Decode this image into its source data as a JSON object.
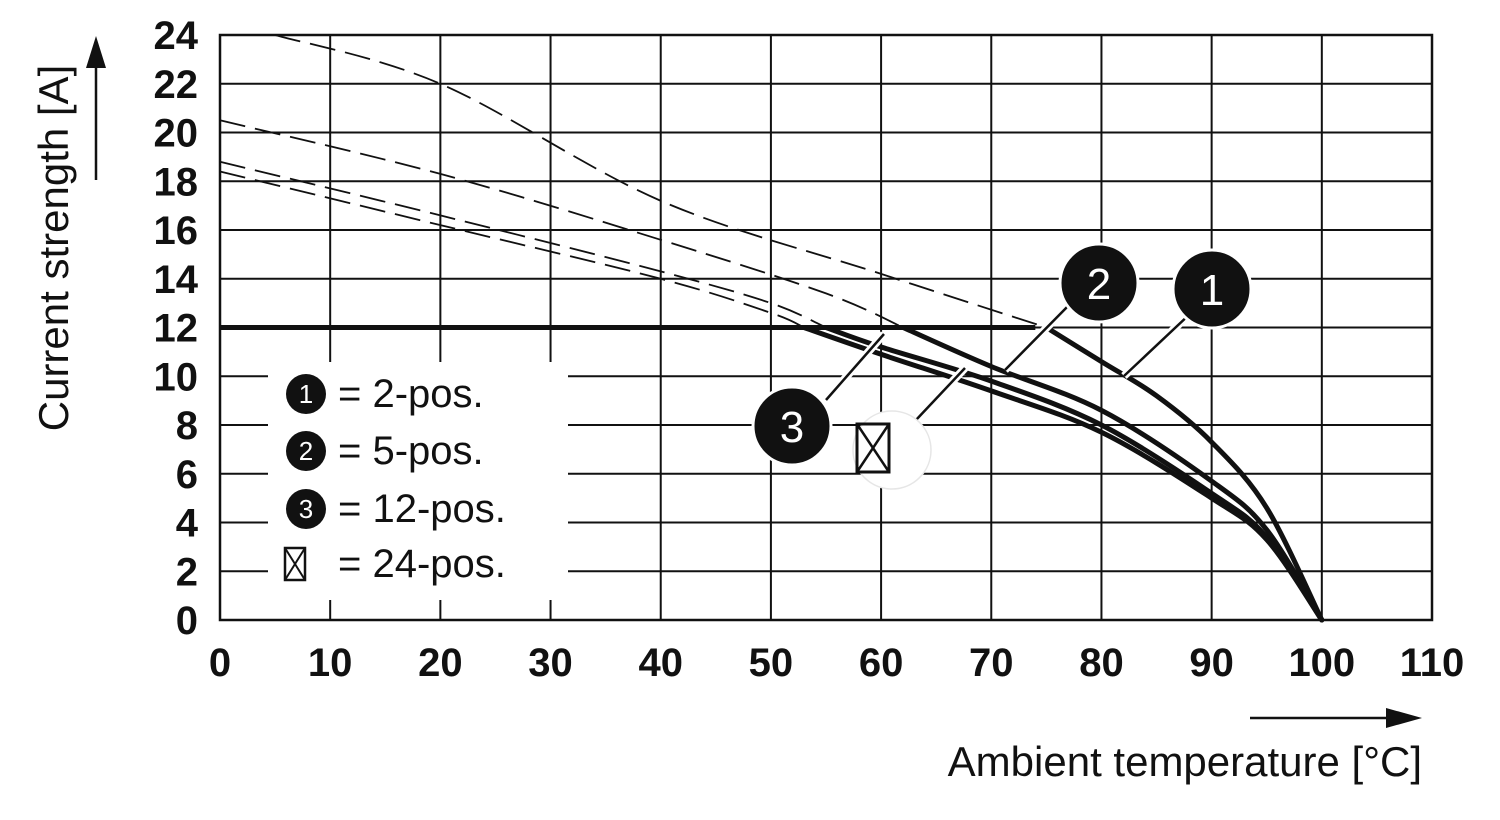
{
  "chart_data": {
    "type": "line",
    "xlabel": "Ambient temperature [°C]",
    "ylabel": "Current strength [A]",
    "xlim": [
      0,
      110
    ],
    "ylim": [
      0,
      24
    ],
    "x_ticks": [
      "0",
      "10",
      "20",
      "30",
      "40",
      "50",
      "60",
      "70",
      "80",
      "90",
      "100",
      "110"
    ],
    "y_ticks": [
      "0",
      "2",
      "4",
      "6",
      "8",
      "10",
      "12",
      "14",
      "16",
      "18",
      "20",
      "22",
      "24"
    ],
    "grid": true,
    "limit_line": {
      "y": 12,
      "x_range": [
        0,
        74
      ]
    },
    "series": [
      {
        "name": "2-pos.",
        "marker": "1",
        "derating_curve": [
          [
            75,
            12
          ],
          [
            80,
            10.6
          ],
          [
            85,
            9.2
          ],
          [
            90,
            7.3
          ],
          [
            95,
            4.6
          ],
          [
            100,
            0
          ]
        ],
        "extrapolated_curve": [
          [
            5,
            24
          ],
          [
            20,
            22
          ],
          [
            40,
            17.2
          ],
          [
            60,
            14.2
          ],
          [
            75,
            12
          ]
        ]
      },
      {
        "name": "5-pos.",
        "marker": "2",
        "derating_curve": [
          [
            62,
            12
          ],
          [
            70,
            10.4
          ],
          [
            80,
            8.6
          ],
          [
            90,
            5.7
          ],
          [
            95,
            3.7
          ],
          [
            100,
            0
          ]
        ],
        "extrapolated_curve": [
          [
            0,
            20.5
          ],
          [
            20,
            18.3
          ],
          [
            40,
            15.6
          ],
          [
            55,
            13.4
          ],
          [
            62,
            12
          ]
        ]
      },
      {
        "name": "12-pos.",
        "marker": "3",
        "derating_curve": [
          [
            55,
            12
          ],
          [
            60,
            11.2
          ],
          [
            70,
            9.8
          ],
          [
            80,
            8.0
          ],
          [
            90,
            5.2
          ],
          [
            95,
            3.4
          ],
          [
            100,
            0
          ]
        ],
        "extrapolated_curve": [
          [
            0,
            18.8
          ],
          [
            20,
            16.6
          ],
          [
            40,
            14.3
          ],
          [
            50,
            13.0
          ],
          [
            55,
            12
          ]
        ]
      },
      {
        "name": "24-pos.",
        "marker": "⊠",
        "derating_curve": [
          [
            53,
            12
          ],
          [
            60,
            10.9
          ],
          [
            70,
            9.4
          ],
          [
            80,
            7.7
          ],
          [
            90,
            5.0
          ],
          [
            95,
            3.3
          ],
          [
            100,
            0
          ]
        ],
        "extrapolated_curve": [
          [
            0,
            18.4
          ],
          [
            20,
            16.2
          ],
          [
            40,
            14.0
          ],
          [
            50,
            12.6
          ],
          [
            53,
            12
          ]
        ]
      }
    ],
    "legend": {
      "position": "bottom-left",
      "entries": [
        {
          "marker": "1",
          "text": "= 2-pos."
        },
        {
          "marker": "2",
          "text": "= 5-pos."
        },
        {
          "marker": "3",
          "text": "= 12-pos."
        },
        {
          "marker": "⊠",
          "text": "= 24-pos."
        }
      ]
    },
    "callouts": [
      "1",
      "2",
      "3",
      "⊠"
    ]
  }
}
